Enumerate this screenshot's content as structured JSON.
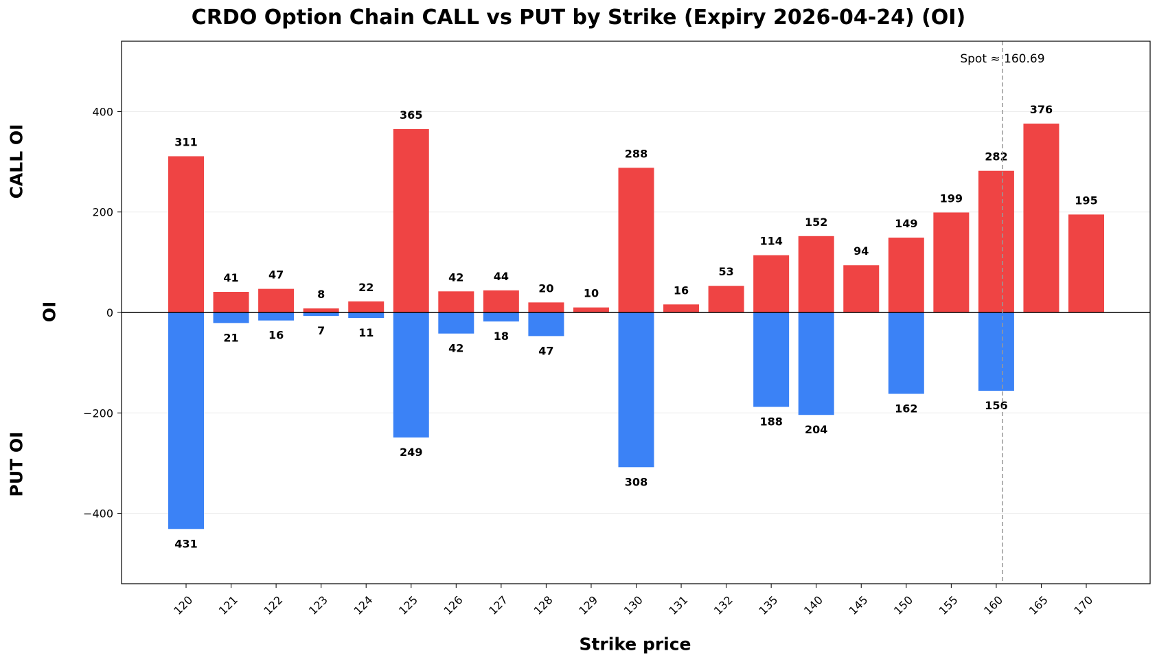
{
  "chart_data": {
    "type": "bar",
    "title": "CRDO Option Chain CALL vs PUT by Strike (Expiry 2026-04-24) (OI)",
    "xlabel": "Strike price",
    "ylabel": "OI",
    "ylabel_top": "CALL OI",
    "ylabel_bottom": "PUT OI",
    "categories": [
      "120",
      "121",
      "122",
      "123",
      "124",
      "125",
      "126",
      "127",
      "128",
      "129",
      "130",
      "131",
      "132",
      "135",
      "140",
      "145",
      "150",
      "155",
      "160",
      "165",
      "170"
    ],
    "series": [
      {
        "name": "CALL",
        "color": "#ef4444",
        "values": [
          311,
          41,
          47,
          8,
          22,
          365,
          42,
          44,
          20,
          10,
          288,
          16,
          53,
          114,
          152,
          94,
          149,
          199,
          282,
          376,
          195
        ]
      },
      {
        "name": "PUT",
        "color": "#3b82f6",
        "values": [
          -431,
          -21,
          -16,
          -7,
          -11,
          -249,
          -42,
          -18,
          -47,
          0,
          -308,
          0,
          0,
          -188,
          -204,
          0,
          -162,
          0,
          -156,
          0,
          0
        ]
      }
    ],
    "put_labels": [
      "431",
      "21",
      "16",
      "7",
      "11",
      "249",
      "42",
      "18",
      "47",
      "",
      "308",
      "",
      "",
      "188",
      "204",
      "",
      "162",
      "",
      "156",
      "",
      ""
    ],
    "ylim": [
      -540,
      540
    ],
    "yticks": [
      -400,
      -200,
      0,
      200,
      400
    ],
    "ytick_labels": [
      "−400",
      "−200",
      "0",
      "200",
      "400"
    ],
    "grid": true,
    "spot": {
      "label": "Spot ≈ 160.69",
      "value": 160.69
    }
  }
}
